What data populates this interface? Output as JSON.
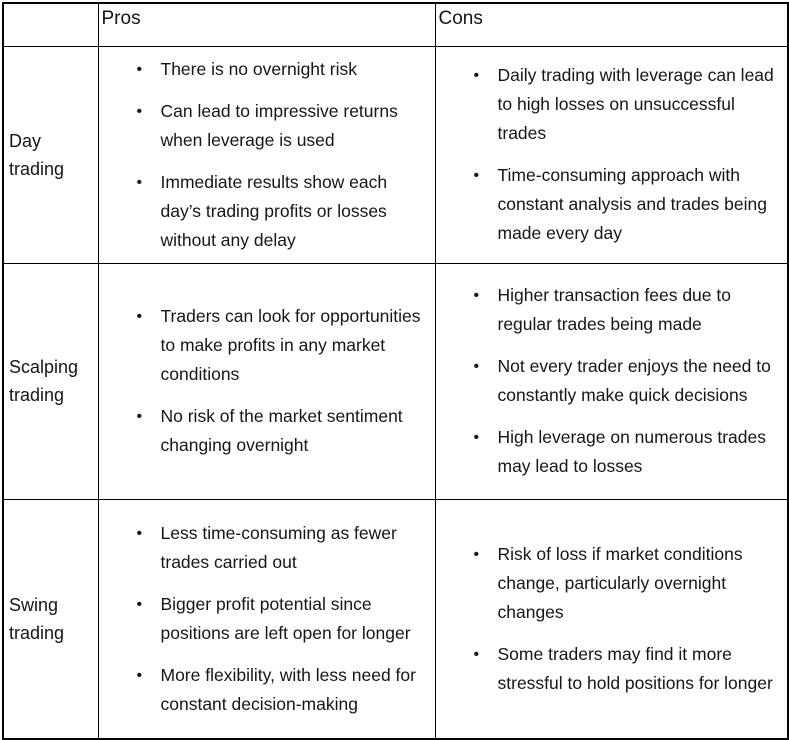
{
  "table": {
    "headers": [
      "",
      "Pros",
      "Cons"
    ],
    "rows": [
      {
        "label": "Day trading",
        "pros": [
          "There is no overnight risk",
          "Can lead to impressive returns when leverage is used",
          "Immediate results show each day’s trading profits or losses without any delay"
        ],
        "cons": [
          "Daily trading with leverage can lead to high losses on unsuccessful trades",
          "Time-consuming approach with constant analysis and trades being made every day"
        ]
      },
      {
        "label": "Scalping trading",
        "pros": [
          "Traders can look for opportunities to make profits in any market conditions",
          "No risk of the market sentiment changing overnight"
        ],
        "cons": [
          "Higher transaction fees due to regular trades being made",
          "Not every trader enjoys the need to constantly make quick decisions",
          "High leverage on numerous trades may lead to losses"
        ]
      },
      {
        "label": "Swing trading",
        "pros": [
          "Less time-consuming as fewer trades carried out",
          "Bigger profit potential since positions are left open for longer",
          "More flexibility, with less need for constant decision-making"
        ],
        "cons": [
          "Risk of loss if market conditions change, particularly overnight changes",
          "Some traders may find it more stressful to hold positions for longer"
        ]
      }
    ]
  }
}
